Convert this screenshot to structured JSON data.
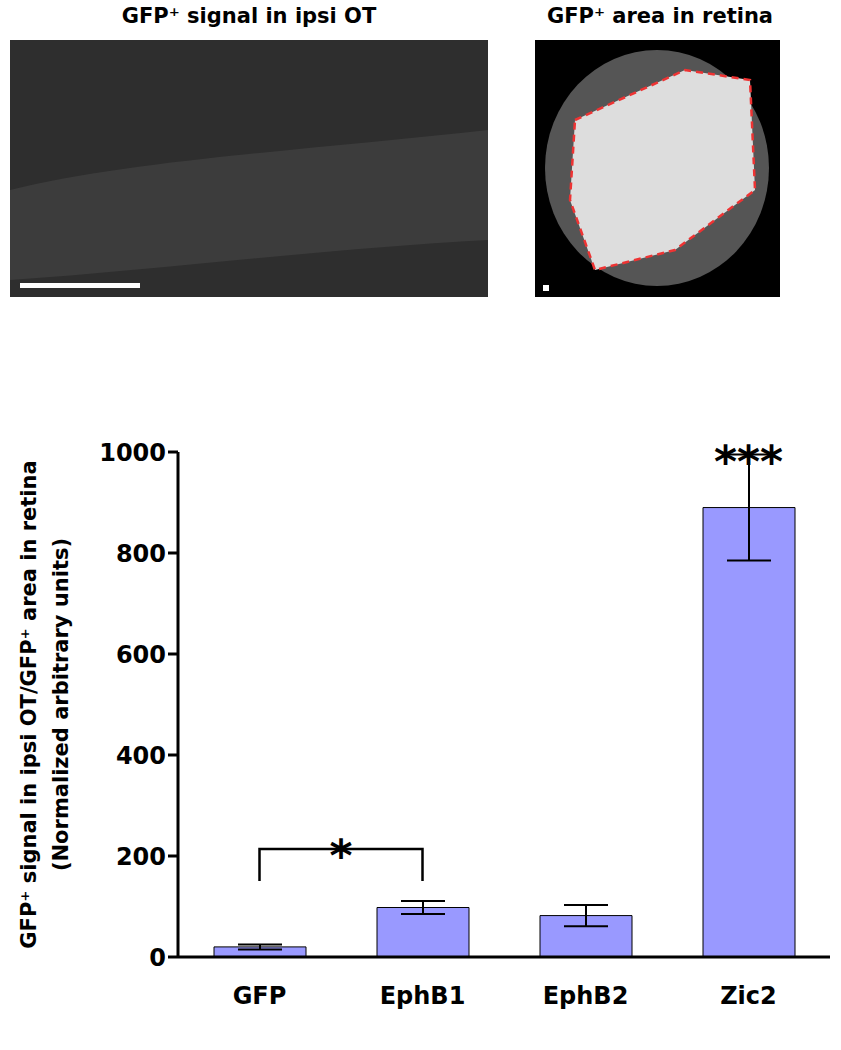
{
  "panels": [
    {
      "title": "GFP⁺ signal in ipsi OT"
    },
    {
      "title": "GFP⁺ area in retina"
    }
  ],
  "chart_data": {
    "type": "bar",
    "ylabel": [
      "GFP⁺ signal in ipsi OT/GFP⁺ area in retina",
      "(Normalized arbitrary units)"
    ],
    "categories": [
      "GFP",
      "EphB1",
      "EphB2",
      "Zic2"
    ],
    "values": [
      20,
      98,
      82,
      890
    ],
    "errors": [
      5,
      13,
      21,
      105
    ],
    "color": "#9999ff",
    "ylim": [
      0,
      1000
    ],
    "yticks": [
      0,
      200,
      400,
      600,
      800,
      1000
    ],
    "grid": false,
    "annotations": [
      {
        "text": "*",
        "between": [
          "GFP",
          "EphB1"
        ]
      },
      {
        "text": "***",
        "above": "Zic2"
      }
    ]
  }
}
